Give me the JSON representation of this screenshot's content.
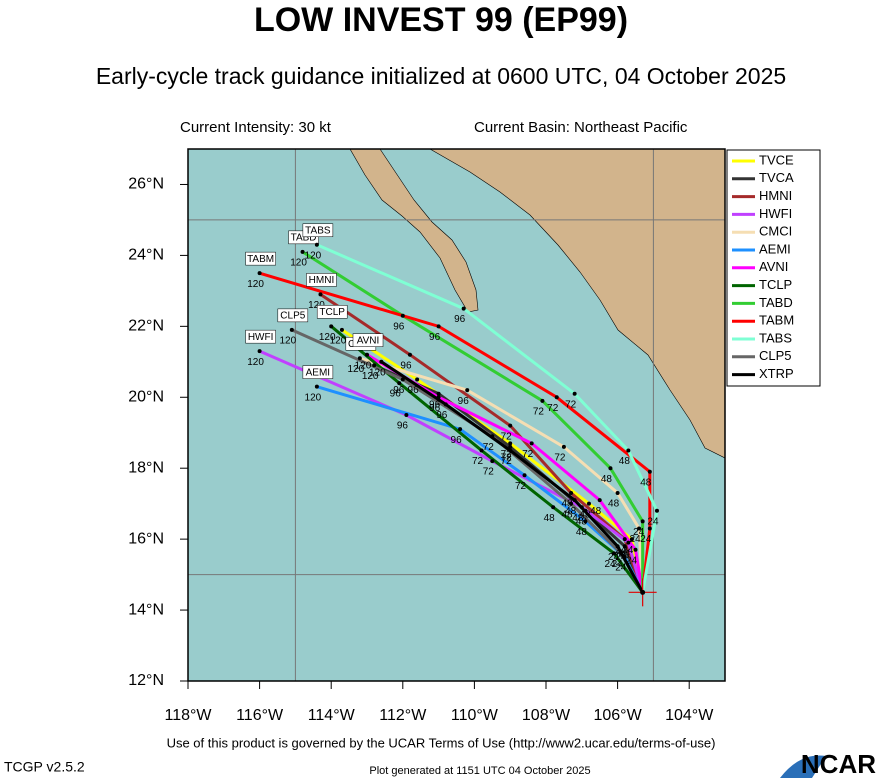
{
  "chart_data": {
    "type": "track",
    "title": "LOW INVEST 99 (EP99)",
    "subtitle": "Early-cycle track guidance initialized at 0600 UTC, 04 October 2025",
    "intensity": "Current Intensity: 30 kt",
    "basin": "Current Basin: Northeast Pacific",
    "xlim": [
      -118,
      -103
    ],
    "ylim": [
      12,
      27
    ],
    "xticks": [
      {
        "value": -118,
        "label": "118°W"
      },
      {
        "value": -116,
        "label": "116°W"
      },
      {
        "value": -114,
        "label": "114°W"
      },
      {
        "value": -112,
        "label": "112°W"
      },
      {
        "value": -110,
        "label": "110°W"
      },
      {
        "value": -108,
        "label": "108°W"
      },
      {
        "value": -106,
        "label": "106°W"
      },
      {
        "value": -104,
        "label": "104°W"
      }
    ],
    "yticks": [
      {
        "value": 12,
        "label": "12°N"
      },
      {
        "value": 14,
        "label": "14°N"
      },
      {
        "value": 16,
        "label": "16°N"
      },
      {
        "value": 18,
        "label": "18°N"
      },
      {
        "value": 20,
        "label": "20°N"
      },
      {
        "value": 22,
        "label": "22°N"
      },
      {
        "value": 24,
        "label": "24°N"
      },
      {
        "value": 26,
        "label": "26°N"
      }
    ],
    "grid_lon": [
      -115,
      -105
    ],
    "grid_lat": [
      25,
      15
    ],
    "initial": {
      "lon": -105.3,
      "lat": 14.5
    },
    "hours": [
      0,
      24,
      48,
      72,
      96,
      120
    ],
    "series": [
      {
        "name": "TVCE",
        "color": "#ffff00",
        "end_label": false,
        "lon": [
          -105.3,
          -105.6,
          -106.8,
          -109.0,
          -111.6,
          -113.7
        ],
        "lat": [
          14.5,
          16.0,
          17.0,
          18.7,
          20.5,
          21.9
        ]
      },
      {
        "name": "TVCA",
        "color": "#333333",
        "end_label": false,
        "lon": [
          -105.3,
          -105.8,
          -106.9,
          -109.0,
          -111.0,
          -112.8
        ],
        "lat": [
          14.5,
          15.8,
          16.8,
          18.6,
          20.1,
          20.9
        ]
      },
      {
        "name": "HMNI",
        "color": "#a52a2a",
        "end_label": true,
        "lon": [
          -105.3,
          -105.8,
          -107.3,
          -109.0,
          -111.8,
          -114.3
        ],
        "lat": [
          14.5,
          16.0,
          17.3,
          19.2,
          21.2,
          22.9
        ]
      },
      {
        "name": "HWFI",
        "color": "#c040ff",
        "end_label": true,
        "lon": [
          -105.3,
          -105.7,
          -107.0,
          -109.5,
          -111.9,
          -116.0
        ],
        "lat": [
          14.5,
          15.9,
          16.9,
          18.2,
          19.5,
          21.3
        ]
      },
      {
        "name": "CMCI",
        "color": "#f5deb3",
        "end_label": true,
        "lon": [
          -105.3,
          -105.4,
          -106.0,
          -107.5,
          -110.2,
          -113.2
        ],
        "lat": [
          14.5,
          16.3,
          17.3,
          18.6,
          20.2,
          21.1
        ]
      },
      {
        "name": "AEMI",
        "color": "#1e90ff",
        "end_label": true,
        "lon": [
          -105.3,
          -105.8,
          -106.9,
          -108.6,
          -110.4,
          -114.4
        ],
        "lat": [
          14.5,
          15.5,
          16.5,
          17.8,
          19.1,
          20.3
        ]
      },
      {
        "name": "AVNI",
        "color": "#ff00ff",
        "end_label": true,
        "lon": [
          -105.3,
          -105.5,
          -106.5,
          -108.4,
          -111.0,
          -113.0
        ],
        "lat": [
          14.5,
          15.7,
          17.1,
          18.7,
          20.0,
          21.2
        ]
      },
      {
        "name": "TCLP",
        "color": "#006400",
        "end_label": true,
        "lon": [
          -105.3,
          -106.1,
          -107.8,
          -109.8,
          -112.1,
          -114.0
        ],
        "lat": [
          14.5,
          15.6,
          16.9,
          18.5,
          20.4,
          22.0
        ]
      },
      {
        "name": "TABD",
        "color": "#32cd32",
        "end_label": true,
        "lon": [
          -105.3,
          -105.3,
          -106.2,
          -108.1,
          -112.0,
          -114.8
        ],
        "lat": [
          14.5,
          16.5,
          18.0,
          19.9,
          22.3,
          24.1
        ]
      },
      {
        "name": "TABM",
        "color": "#ff0000",
        "end_label": true,
        "lon": [
          -105.3,
          -105.1,
          -105.1,
          -107.7,
          -111.0,
          -116.0
        ],
        "lat": [
          14.5,
          16.3,
          17.9,
          20.0,
          22.0,
          23.5
        ]
      },
      {
        "name": "TABS",
        "color": "#7fffd4",
        "end_label": true,
        "lon": [
          -105.3,
          -104.9,
          -105.7,
          -107.2,
          -110.3,
          -114.4
        ],
        "lat": [
          14.5,
          16.8,
          18.5,
          20.1,
          22.5,
          24.3
        ]
      },
      {
        "name": "CLP5",
        "color": "#666666",
        "end_label": true,
        "lon": [
          -105.3,
          -105.9,
          -107.3,
          -109.5,
          -112.0,
          -115.1
        ],
        "lat": [
          14.5,
          15.6,
          17.0,
          18.9,
          20.5,
          21.9
        ]
      },
      {
        "name": "XTRP",
        "color": "#000000",
        "end_label": false,
        "lon": [
          -105.3,
          -106.0,
          -107.2,
          -109.0,
          -110.8,
          -112.6
        ],
        "lat": [
          14.5,
          15.8,
          17.1,
          18.5,
          19.8,
          21.0
        ]
      }
    ],
    "terms": "Use of this product is governed by the UCAR Terms of Use (http://www2.ucar.edu/terms-of-use)",
    "version": "TCGP v2.5.2",
    "generated": "Plot generated at 1151 UTC  04 October 2025",
    "logo": "NCAR"
  }
}
